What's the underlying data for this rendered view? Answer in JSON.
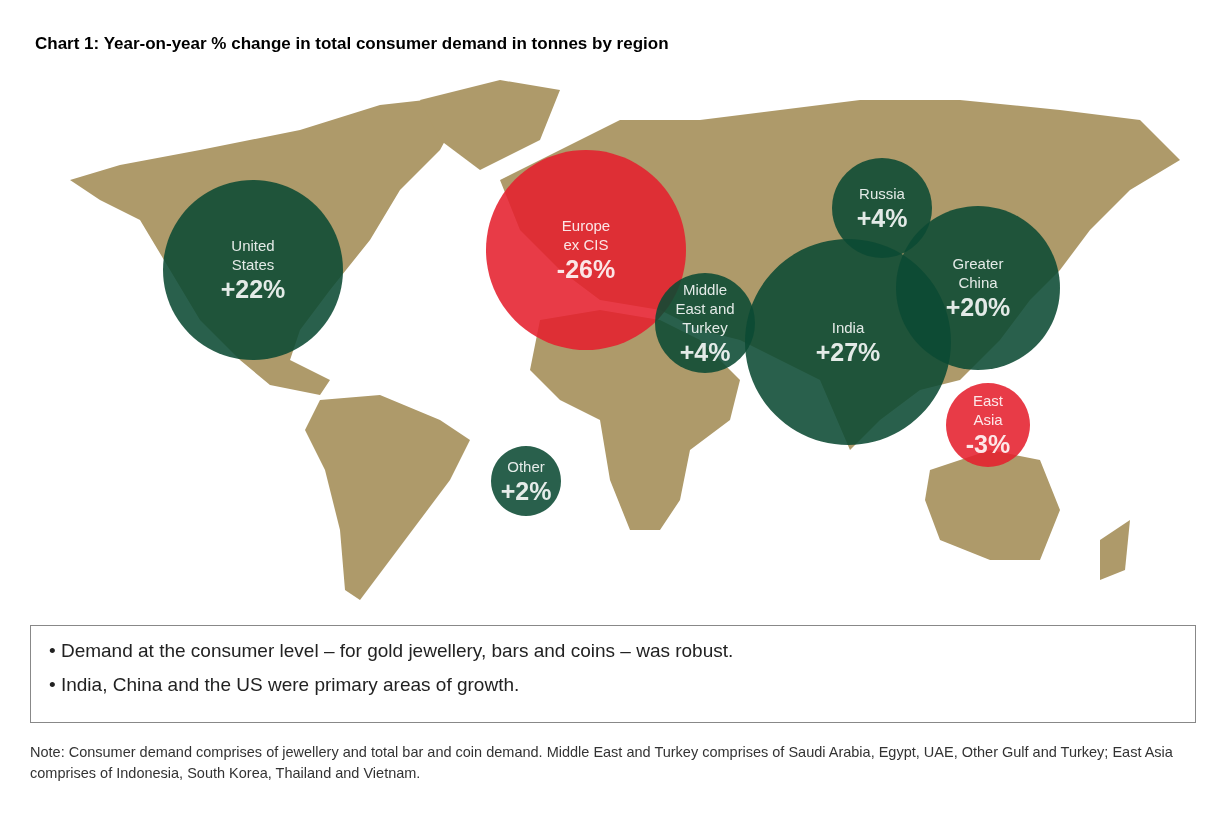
{
  "chart_data": {
    "type": "other",
    "title": "Chart 1: Year-on-year % change in total consumer demand in tonnes by region",
    "categories": [
      "United States",
      "Europe ex CIS",
      "Middle East and Turkey",
      "Russia",
      "India",
      "Greater China",
      "East Asia",
      "Other"
    ],
    "values": [
      22,
      -26,
      4,
      4,
      27,
      20,
      -3,
      2
    ],
    "value_labels": [
      "+22%",
      "-26%",
      "+4%",
      "+4%",
      "+27%",
      "+20%",
      "-3%",
      "+2%"
    ],
    "colors": [
      "#0b4a33",
      "#e5202e",
      "#0b4a33",
      "#0b4a33",
      "#0b4a33",
      "#0b4a33",
      "#e5202e",
      "#0b4a33"
    ],
    "annotations": [
      "• Demand at the consumer level – for gold jewellery, bars and coins – was robust.",
      "• India, China and the US were primary areas of growth.",
      "Note: Consumer demand comprises of jewellery and total bar and coin demand. Middle East and Turkey comprises of Saudi Arabia, Egypt, UAE, Other Gulf and Turkey; East Asia comprises of Indonesia, South Korea, Thailand and Vietnam."
    ]
  }
}
